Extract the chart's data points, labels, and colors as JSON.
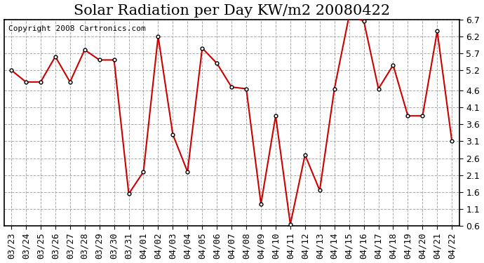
{
  "title": "Solar Radiation per Day KW/m2 20080422",
  "copyright": "Copyright 2008 Cartronics.com",
  "dates": [
    "03/23",
    "03/24",
    "03/25",
    "03/26",
    "03/27",
    "03/28",
    "03/29",
    "03/30",
    "03/31",
    "04/01",
    "04/02",
    "04/03",
    "04/04",
    "04/05",
    "04/06",
    "04/07",
    "04/08",
    "04/09",
    "04/10",
    "04/11",
    "04/12",
    "04/13",
    "04/14",
    "04/15",
    "04/16",
    "04/17",
    "04/18",
    "04/19",
    "04/20",
    "04/21",
    "04/22"
  ],
  "values": [
    5.2,
    4.85,
    4.85,
    5.6,
    4.85,
    5.8,
    5.5,
    5.5,
    1.55,
    2.2,
    6.2,
    3.3,
    2.2,
    5.85,
    5.4,
    4.7,
    4.65,
    1.25,
    3.85,
    0.65,
    2.7,
    1.65,
    4.65,
    6.8,
    6.65,
    4.65,
    5.35,
    3.85,
    3.85,
    6.35,
    3.1
  ],
  "line_color": "#cc0000",
  "marker": "o",
  "marker_facecolor": "#ffffff",
  "marker_edgecolor": "#000000",
  "marker_size": 3.5,
  "marker_edgewidth": 1.0,
  "bg_color": "#ffffff",
  "grid_color": "#aaaaaa",
  "grid_linestyle": "--",
  "ylim_min": 0.6,
  "ylim_max": 6.7,
  "yticks": [
    0.6,
    1.1,
    1.6,
    2.1,
    2.6,
    3.1,
    3.6,
    4.1,
    4.6,
    5.2,
    5.7,
    6.2,
    6.7
  ],
  "title_fontsize": 15,
  "tick_fontsize": 9,
  "copyright_fontsize": 8,
  "linewidth": 1.5
}
